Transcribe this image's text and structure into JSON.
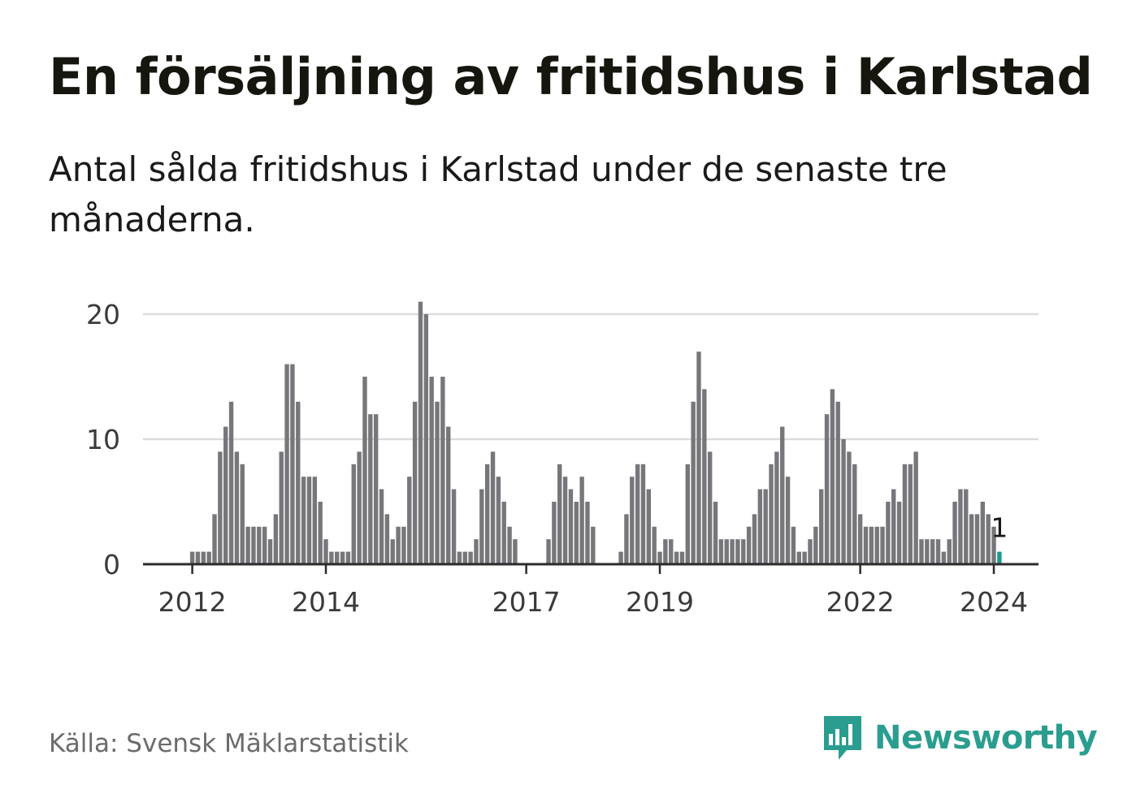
{
  "title": "En försäljning av fritidshus i Karlstad",
  "subtitle": "Antal sålda fritidshus i Karlstad under de senaste tre månaderna.",
  "source": "Källa: Svensk Mäklarstatistik",
  "brand": {
    "name": "Newsworthy",
    "logo_icon": "newsworthy-bar-chart-speech-bubble-icon",
    "color": "#2a9d8f"
  },
  "colors": {
    "bar": "#77767b",
    "highlight": "#1a9a8e",
    "grid": "#dcdcdc",
    "baseline": "#2b2b2b"
  },
  "chart_data": {
    "type": "bar",
    "title": "",
    "xlabel": "",
    "ylabel": "",
    "ylim": [
      0,
      22
    ],
    "y_ticks": [
      0,
      10,
      20
    ],
    "x_tick_labels": [
      "2012",
      "2014",
      "2017",
      "2019",
      "2022",
      "2024"
    ],
    "start": "2011-01",
    "frequency": "monthly",
    "values": [
      null,
      null,
      null,
      null,
      null,
      null,
      null,
      null,
      null,
      null,
      null,
      null,
      1,
      1,
      1,
      1,
      4,
      9,
      11,
      13,
      9,
      8,
      3,
      3,
      3,
      3,
      2,
      4,
      9,
      16,
      16,
      13,
      7,
      7,
      7,
      5,
      2,
      1,
      1,
      1,
      1,
      8,
      9,
      15,
      12,
      12,
      6,
      4,
      2,
      3,
      3,
      7,
      13,
      21,
      20,
      15,
      13,
      15,
      11,
      6,
      1,
      1,
      1,
      2,
      6,
      8,
      9,
      7,
      5,
      3,
      2,
      null,
      null,
      null,
      null,
      null,
      2,
      5,
      8,
      7,
      6,
      5,
      7,
      5,
      3,
      null,
      null,
      null,
      null,
      1,
      4,
      7,
      8,
      8,
      6,
      3,
      1,
      2,
      2,
      1,
      1,
      8,
      13,
      17,
      14,
      9,
      5,
      2,
      2,
      2,
      2,
      2,
      3,
      4,
      6,
      6,
      8,
      9,
      11,
      7,
      3,
      1,
      1,
      2,
      3,
      6,
      12,
      14,
      13,
      10,
      9,
      8,
      4,
      3,
      3,
      3,
      3,
      5,
      6,
      5,
      8,
      8,
      9,
      2,
      2,
      2,
      2,
      1,
      2,
      5,
      6,
      6,
      4,
      4,
      5,
      4,
      3,
      1
    ],
    "highlight": {
      "x": "2024-02",
      "value": 1,
      "label": "1"
    }
  }
}
